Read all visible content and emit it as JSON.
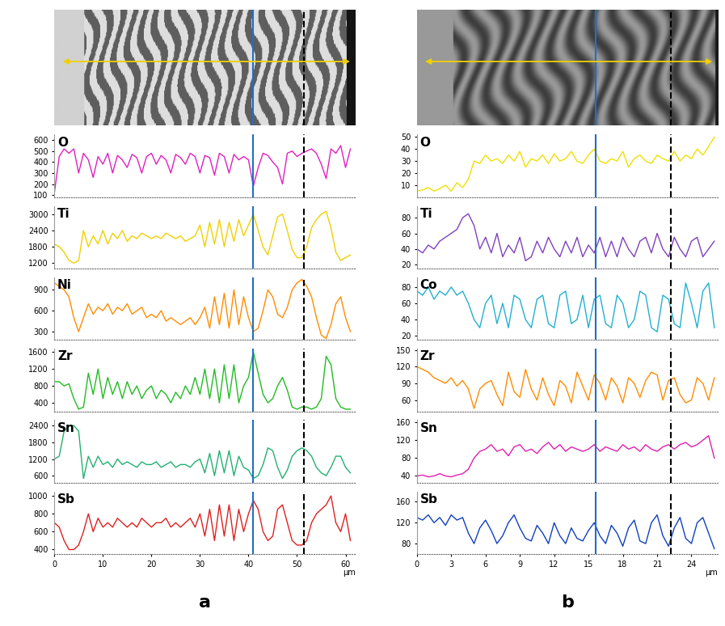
{
  "chart_data": [
    {
      "type": "line",
      "label": "a",
      "xlabel": "µm",
      "x": [
        0,
        1,
        2,
        3,
        4,
        5,
        6,
        7,
        8,
        9,
        10,
        11,
        12,
        13,
        14,
        15,
        16,
        17,
        18,
        19,
        20,
        21,
        22,
        23,
        24,
        25,
        26,
        27,
        28,
        29,
        30,
        31,
        32,
        33,
        34,
        35,
        36,
        37,
        38,
        39,
        40,
        41,
        42,
        43,
        44,
        45,
        46,
        47,
        48,
        49,
        50,
        51,
        52,
        53,
        54,
        55,
        56,
        57,
        58,
        59,
        60,
        61
      ],
      "xlim": [
        0,
        62
      ],
      "xticks": [
        0,
        10,
        20,
        30,
        40,
        50,
        60
      ],
      "vlines": [
        {
          "x": 41,
          "color": "#1f6fc5",
          "line_style": "solid"
        },
        {
          "x": 51.5,
          "color": "#000000",
          "line_style": "dashed"
        }
      ],
      "series": [
        {
          "name": "O",
          "color": "#e020c0",
          "ylim": [
            80,
            650
          ],
          "yticks": [
            100,
            200,
            300,
            400,
            500,
            600
          ],
          "values": [
            120,
            450,
            520,
            480,
            520,
            300,
            480,
            420,
            260,
            450,
            380,
            480,
            300,
            460,
            420,
            350,
            470,
            440,
            300,
            450,
            480,
            380,
            460,
            420,
            300,
            470,
            440,
            380,
            480,
            450,
            300,
            460,
            440,
            280,
            480,
            450,
            300,
            470,
            420,
            450,
            420,
            180,
            350,
            480,
            460,
            400,
            350,
            200,
            480,
            500,
            450,
            480,
            500,
            520,
            480,
            380,
            250,
            520,
            480,
            550,
            350,
            520
          ]
        },
        {
          "name": "Ti",
          "color": "#f0d000",
          "ylim": [
            1000,
            3300
          ],
          "yticks": [
            1200,
            1800,
            2400,
            3000
          ],
          "values": [
            1900,
            1800,
            1600,
            1300,
            1200,
            1300,
            2400,
            1800,
            2200,
            1900,
            2400,
            1900,
            2300,
            2100,
            2400,
            2000,
            2200,
            2100,
            2300,
            2200,
            2100,
            2200,
            2100,
            2300,
            2200,
            2100,
            2200,
            2000,
            2100,
            2200,
            2600,
            1800,
            2700,
            1900,
            2800,
            1800,
            2700,
            2000,
            2800,
            2200,
            2600,
            3000,
            2400,
            1800,
            1500,
            2200,
            2900,
            3000,
            2400,
            1700,
            1400,
            1400,
            1800,
            2500,
            2800,
            3000,
            3100,
            2500,
            1600,
            1300,
            1400,
            1500
          ]
        },
        {
          "name": "Ni",
          "color": "#ff8c00",
          "ylim": [
            180,
            1080
          ],
          "yticks": [
            300,
            600,
            900
          ],
          "values": [
            1000,
            950,
            900,
            800,
            500,
            300,
            500,
            700,
            550,
            650,
            600,
            700,
            550,
            650,
            600,
            700,
            550,
            600,
            650,
            500,
            550,
            500,
            600,
            450,
            500,
            450,
            400,
            450,
            500,
            400,
            500,
            650,
            350,
            800,
            400,
            850,
            350,
            900,
            400,
            800,
            500,
            300,
            350,
            600,
            900,
            800,
            550,
            500,
            650,
            900,
            1000,
            1050,
            950,
            800,
            500,
            250,
            200,
            400,
            700,
            800,
            500,
            300
          ]
        },
        {
          "name": "Zr",
          "color": "#22bb22",
          "ylim": [
            200,
            1680
          ],
          "yticks": [
            400,
            800,
            1200,
            1600
          ],
          "values": [
            900,
            900,
            800,
            850,
            500,
            250,
            300,
            1100,
            600,
            1200,
            500,
            1000,
            600,
            900,
            500,
            900,
            600,
            800,
            500,
            700,
            800,
            500,
            700,
            600,
            400,
            650,
            500,
            800,
            600,
            1000,
            600,
            1200,
            500,
            1200,
            400,
            1300,
            500,
            1300,
            400,
            800,
            1000,
            1600,
            1100,
            600,
            400,
            500,
            800,
            1000,
            700,
            300,
            250,
            300,
            300,
            250,
            300,
            500,
            1500,
            1300,
            500,
            300,
            250,
            250
          ]
        },
        {
          "name": "Sn",
          "color": "#22b070",
          "ylim": [
            350,
            2600
          ],
          "yticks": [
            600,
            1200,
            1800,
            2400
          ],
          "values": [
            1200,
            1300,
            2200,
            2400,
            2400,
            2200,
            500,
            1300,
            900,
            1300,
            1000,
            1100,
            900,
            1200,
            1000,
            1100,
            1000,
            900,
            1100,
            1000,
            1000,
            1100,
            900,
            1000,
            1100,
            900,
            1000,
            1000,
            900,
            1100,
            1200,
            700,
            1400,
            600,
            1500,
            700,
            1500,
            600,
            1300,
            900,
            800,
            500,
            600,
            1000,
            1600,
            1500,
            900,
            500,
            800,
            1300,
            1500,
            1600,
            1500,
            1300,
            900,
            700,
            600,
            900,
            1300,
            1300,
            900,
            700
          ]
        },
        {
          "name": "Sb",
          "color": "#e02020",
          "ylim": [
            350,
            1050
          ],
          "yticks": [
            400,
            600,
            800,
            1000
          ],
          "values": [
            700,
            650,
            500,
            400,
            400,
            450,
            600,
            800,
            600,
            750,
            650,
            700,
            650,
            750,
            700,
            650,
            700,
            650,
            750,
            700,
            650,
            700,
            700,
            750,
            650,
            700,
            650,
            700,
            750,
            650,
            800,
            550,
            850,
            500,
            900,
            550,
            900,
            500,
            850,
            600,
            800,
            950,
            850,
            600,
            500,
            550,
            850,
            900,
            700,
            500,
            450,
            450,
            500,
            700,
            800,
            850,
            900,
            1000,
            700,
            600,
            800,
            500
          ]
        }
      ]
    },
    {
      "type": "line",
      "label": "b",
      "xlabel": "µm",
      "x": [
        0,
        0.5,
        1,
        1.5,
        2,
        2.5,
        3,
        3.5,
        4,
        4.5,
        5,
        5.5,
        6,
        6.5,
        7,
        7.5,
        8,
        8.5,
        9,
        9.5,
        10,
        10.5,
        11,
        11.5,
        12,
        12.5,
        13,
        13.5,
        14,
        14.5,
        15,
        15.5,
        16,
        16.5,
        17,
        17.5,
        18,
        18.5,
        19,
        19.5,
        20,
        20.5,
        21,
        21.5,
        22,
        22.5,
        23,
        23.5,
        24,
        24.5,
        25,
        25.5,
        26
      ],
      "xlim": [
        0,
        26.3
      ],
      "xticks": [
        0,
        3,
        6,
        9,
        12,
        15,
        18,
        21,
        24
      ],
      "vlines": [
        {
          "x": 15.6,
          "color": "#1f6fc5",
          "line_style": "solid"
        },
        {
          "x": 22.2,
          "color": "#000000",
          "line_style": "dashed"
        }
      ],
      "series": [
        {
          "name": "O",
          "color": "#f0e000",
          "ylim": [
            0,
            52
          ],
          "yticks": [
            10,
            20,
            30,
            40,
            50
          ],
          "values": [
            5,
            6,
            8,
            5,
            7,
            10,
            5,
            12,
            8,
            15,
            30,
            28,
            35,
            30,
            32,
            28,
            35,
            30,
            38,
            25,
            32,
            30,
            35,
            28,
            36,
            30,
            32,
            38,
            30,
            28,
            35,
            40,
            30,
            28,
            32,
            30,
            38,
            25,
            32,
            35,
            30,
            28,
            35,
            32,
            30,
            38,
            30,
            35,
            32,
            40,
            35,
            42,
            50
          ]
        },
        {
          "name": "Ti",
          "color": "#8040c0",
          "ylim": [
            15,
            95
          ],
          "yticks": [
            20,
            40,
            60,
            80
          ],
          "values": [
            40,
            35,
            45,
            40,
            50,
            55,
            60,
            65,
            80,
            85,
            70,
            40,
            55,
            35,
            60,
            30,
            45,
            35,
            55,
            25,
            30,
            50,
            35,
            55,
            40,
            30,
            50,
            35,
            55,
            30,
            45,
            35,
            55,
            30,
            50,
            30,
            55,
            40,
            30,
            50,
            55,
            35,
            60,
            40,
            30,
            55,
            40,
            30,
            50,
            55,
            30,
            40,
            50
          ]
        },
        {
          "name": "Co",
          "color": "#20b0d0",
          "ylim": [
            15,
            92
          ],
          "yticks": [
            20,
            40,
            60,
            80
          ],
          "values": [
            75,
            70,
            80,
            65,
            75,
            70,
            80,
            70,
            75,
            60,
            40,
            30,
            60,
            70,
            35,
            60,
            30,
            70,
            65,
            40,
            30,
            65,
            70,
            35,
            30,
            70,
            75,
            35,
            40,
            70,
            30,
            65,
            70,
            35,
            30,
            70,
            60,
            30,
            40,
            75,
            70,
            30,
            25,
            70,
            65,
            35,
            30,
            85,
            60,
            30,
            75,
            85,
            30
          ]
        },
        {
          "name": "Zr",
          "color": "#ff8c00",
          "ylim": [
            40,
            152
          ],
          "yticks": [
            60,
            90,
            120,
            150
          ],
          "values": [
            120,
            115,
            110,
            100,
            95,
            90,
            100,
            85,
            95,
            80,
            45,
            80,
            90,
            95,
            70,
            50,
            110,
            75,
            65,
            115,
            80,
            60,
            100,
            70,
            50,
            95,
            85,
            55,
            110,
            85,
            60,
            105,
            90,
            60,
            100,
            85,
            55,
            100,
            90,
            65,
            95,
            110,
            105,
            60,
            95,
            100,
            70,
            55,
            60,
            100,
            90,
            60,
            100
          ]
        },
        {
          "name": "Sn",
          "color": "#e020b0",
          "ylim": [
            25,
            165
          ],
          "yticks": [
            40,
            80,
            120,
            160
          ],
          "values": [
            40,
            42,
            38,
            40,
            45,
            40,
            38,
            42,
            45,
            55,
            80,
            95,
            100,
            110,
            95,
            100,
            85,
            105,
            110,
            95,
            100,
            90,
            105,
            115,
            100,
            110,
            95,
            105,
            100,
            95,
            100,
            110,
            95,
            105,
            100,
            95,
            110,
            100,
            105,
            95,
            110,
            100,
            95,
            105,
            110,
            100,
            110,
            115,
            105,
            110,
            120,
            130,
            80
          ]
        },
        {
          "name": "Sb",
          "color": "#1040c0",
          "ylim": [
            60,
            180
          ],
          "yticks": [
            80,
            120,
            160
          ],
          "values": [
            130,
            125,
            135,
            120,
            130,
            115,
            135,
            125,
            130,
            100,
            80,
            110,
            125,
            105,
            80,
            95,
            120,
            135,
            110,
            90,
            85,
            115,
            100,
            80,
            120,
            95,
            80,
            110,
            90,
            85,
            105,
            120,
            95,
            80,
            115,
            100,
            75,
            110,
            125,
            85,
            80,
            120,
            135,
            95,
            75,
            110,
            130,
            90,
            80,
            120,
            130,
            100,
            70
          ]
        }
      ]
    }
  ]
}
